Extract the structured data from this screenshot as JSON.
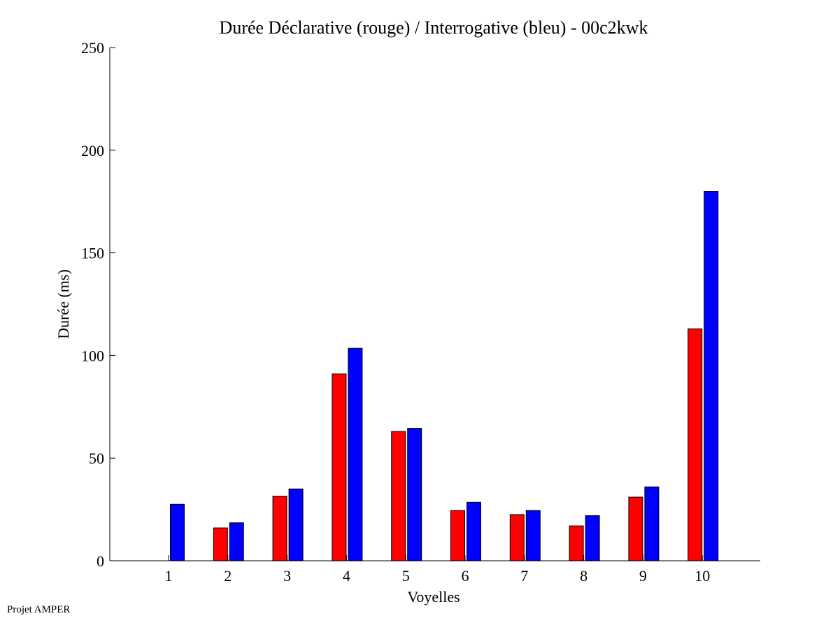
{
  "chart_data": {
    "type": "bar",
    "title": "Durée Déclarative (rouge) / Interrogative (bleu) - 00c2kwk",
    "xlabel": "Voyelles",
    "ylabel": "Durée (ms)",
    "ylim": [
      0,
      250
    ],
    "yticks": [
      0,
      50,
      100,
      150,
      200,
      250
    ],
    "categories": [
      "1",
      "2",
      "3",
      "4",
      "5",
      "6",
      "7",
      "8",
      "9",
      "10"
    ],
    "series": [
      {
        "color": "#ff0000",
        "values": [
          0,
          16,
          31.5,
          91,
          63,
          24.5,
          22.5,
          17,
          31,
          113
        ]
      },
      {
        "color": "#0000ff",
        "values": [
          27.5,
          18.5,
          35,
          103.5,
          64.5,
          28.5,
          24.5,
          22,
          36,
          180
        ]
      }
    ],
    "grid": false,
    "legend": "none"
  },
  "footer": {
    "note": "Projet AMPER"
  }
}
